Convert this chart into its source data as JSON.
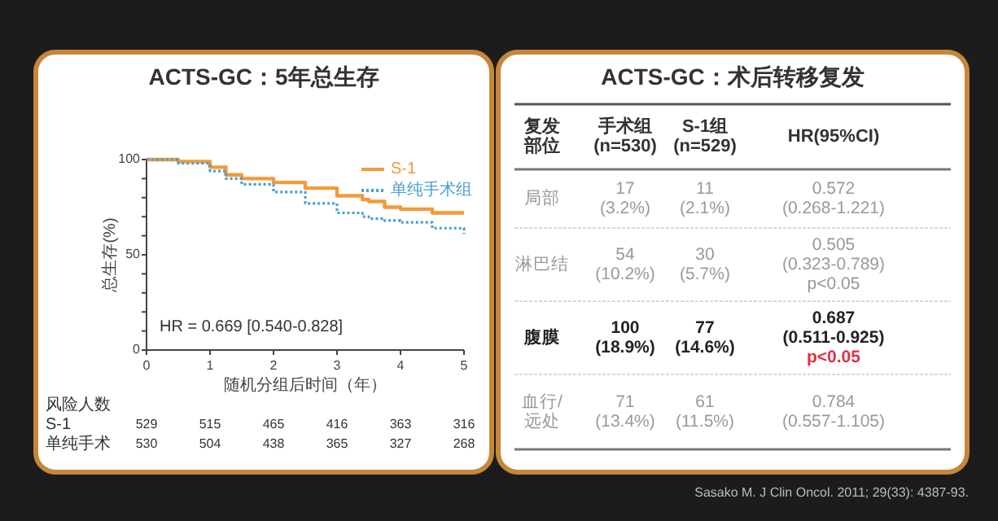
{
  "chart_data": [
    {
      "type": "step",
      "title": "ACTS-GC：5年总生存",
      "xlabel": "随机分组后时间（年）",
      "ylabel": "总生存(%)",
      "x": [
        0,
        0.5,
        1,
        1.25,
        1.5,
        2,
        2.5,
        3,
        3.4,
        3.5,
        3.75,
        4,
        4.5,
        5
      ],
      "series": [
        {
          "name": "S-1",
          "color": "#f39a3a",
          "line_style": "solid",
          "values": [
            100,
            99,
            96,
            92,
            90,
            88,
            85,
            81,
            79,
            78,
            75,
            74,
            72,
            72
          ]
        },
        {
          "name": "单纯手术组",
          "color": "#4a9fd0",
          "line_style": "dotted",
          "values": [
            100,
            98,
            94,
            90,
            87,
            83,
            77,
            72,
            70,
            69,
            68,
            67,
            64,
            61
          ]
        }
      ],
      "xlim": [
        0,
        5
      ],
      "xticks": [
        0,
        1,
        2,
        3,
        4,
        5
      ],
      "ylim": [
        0,
        100
      ],
      "yticks": [
        0,
        {
          "value": 10,
          "label": null
        },
        {
          "value": 20,
          "label": null
        },
        {
          "value": 30,
          "label": null
        },
        {
          "value": 40,
          "label": null
        },
        50,
        {
          "value": 60,
          "label": null
        },
        {
          "value": 70,
          "label": null
        },
        {
          "value": 80,
          "label": null
        },
        {
          "value": 90,
          "label": null
        },
        100
      ],
      "legend": "top right",
      "annotations": [
        "HR = 0.669   [0.540-0.828]",
        "风险人数",
        "S-1 529 515 465 416 363 316",
        "单纯手术 530 504 438 365 327 268"
      ]
    },
    {
      "type": "other",
      "title": "ACTS-GC：术后转移复发",
      "colors": [
        "#333333",
        "#999999",
        "#999999",
        "#222222",
        "#999999"
      ],
      "annotations": [
        "复发部位",
        "手术组\n(n=530)",
        "S-1组\n(n=529)",
        "HR(95%CI)",
        "局部",
        "17\n(3.2%)",
        "11\n(2.1%)",
        "0.572\n(0.268-1.221)",
        "淋巴结",
        "54\n(10.2%)",
        "30\n(5.7%)",
        "0.505\n(0.323-0.789)\np<0.05",
        "腹膜",
        "100\n(18.9%)",
        "77\n(14.6%)",
        "0.687\n(0.511-0.925)\np<0.05",
        "血行/远处",
        "71\n(13.4%)",
        "61\n(11.5%)",
        "0.784\n(0.557-1.105)",
        "Sasako M. J Clin Oncol. 2011; 29(33): 4387-93."
      ]
    }
  ]
}
